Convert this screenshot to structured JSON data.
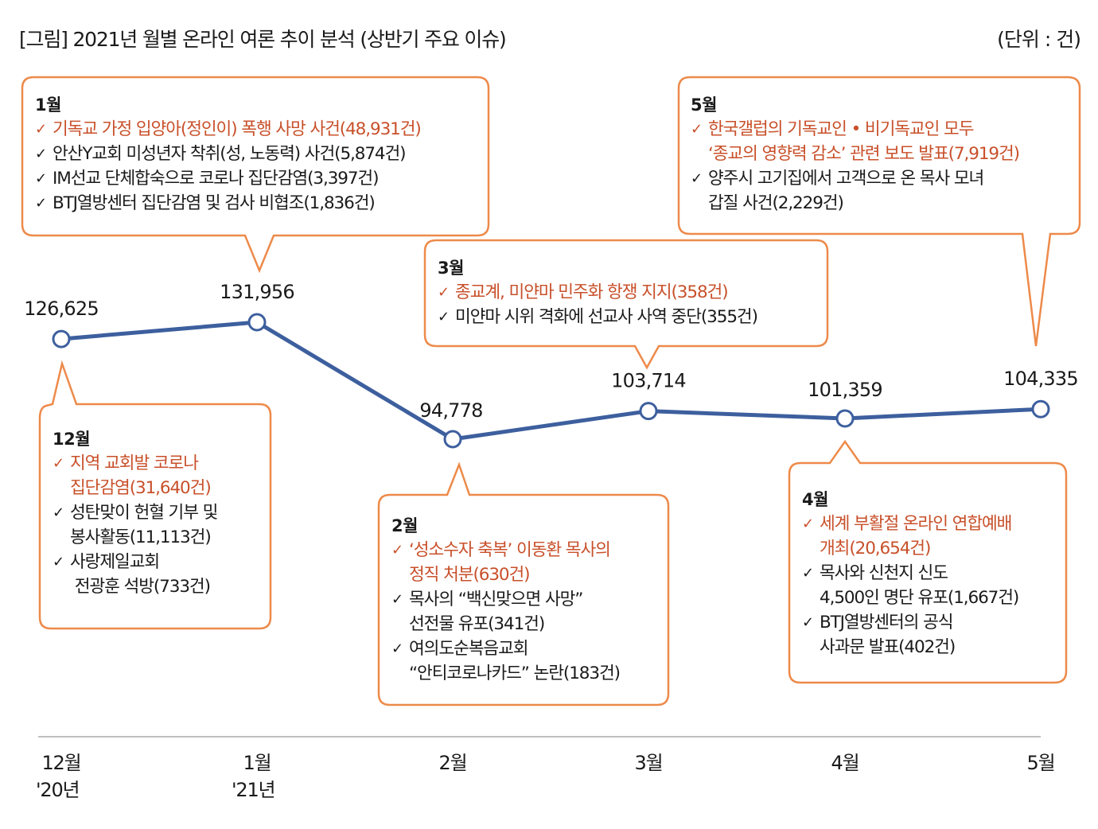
{
  "header": {
    "title": "[그림] 2021년 월별 온라인 여론 추이 분석 (상반기 주요 이슈)",
    "unit": "(단위 : 건)"
  },
  "colors": {
    "line": "#3d5f9e",
    "callout_border": "#ed8a4a",
    "highlight_text": "#c8502a",
    "axis": "#bfbfbf"
  },
  "chart_data": {
    "type": "line",
    "title": "[그림] 2021년 월별 온라인 여론 추이 분석 (상반기 주요 이슈)",
    "unit": "건",
    "xlabel": "",
    "ylabel": "",
    "grid": false,
    "categories": [
      "12월 '20년",
      "1월 '21년",
      "2월",
      "3월",
      "4월",
      "5월"
    ],
    "x_ticks": [
      {
        "month": "12월",
        "year": "'20년"
      },
      {
        "month": "1월",
        "year": "'21년"
      },
      {
        "month": "2월",
        "year": ""
      },
      {
        "month": "3월",
        "year": ""
      },
      {
        "month": "4월",
        "year": ""
      },
      {
        "month": "5월",
        "year": ""
      }
    ],
    "series": [
      {
        "name": "온라인 여론",
        "values": [
          126625,
          131956,
          94778,
          103714,
          101359,
          104335
        ]
      }
    ],
    "data_labels": [
      "126,625",
      "131,956",
      "94,778",
      "103,714",
      "101,359",
      "104,335"
    ]
  },
  "callouts": [
    {
      "month": "12월",
      "items": [
        {
          "highlight": true,
          "lines": [
            "지역 교회발 코로나",
            "집단감염(31,640건)"
          ]
        },
        {
          "highlight": false,
          "lines": [
            "성탄맞이 헌혈 기부 및",
            "봉사활동(11,113건)"
          ]
        },
        {
          "highlight": false,
          "lines": [
            "사랑제일교회",
            " 전광훈 석방(733건)"
          ]
        }
      ]
    },
    {
      "month": "1월",
      "items": [
        {
          "highlight": true,
          "lines": [
            "기독교 가정 입양아(정인이) 폭행 사망 사건(48,931건)"
          ]
        },
        {
          "highlight": false,
          "lines": [
            "안산Y교회 미성년자 착취(성, 노동력) 사건(5,874건)"
          ]
        },
        {
          "highlight": false,
          "lines": [
            "IM선교 단체합숙으로 코로나 집단감염(3,397건)"
          ]
        },
        {
          "highlight": false,
          "lines": [
            "BTJ열방센터 집단감염 및 검사 비협조(1,836건)"
          ]
        }
      ]
    },
    {
      "month": "2월",
      "items": [
        {
          "highlight": true,
          "lines": [
            "‘성소수자 축복’ 이동환 목사의",
            "정직 처분(630건)"
          ]
        },
        {
          "highlight": false,
          "lines": [
            "목사의 “백신맞으면 사망”",
            "선전물 유포(341건)"
          ]
        },
        {
          "highlight": false,
          "lines": [
            "여의도순복음교회",
            "“안티코로나카드” 논란(183건)"
          ]
        }
      ]
    },
    {
      "month": "3월",
      "items": [
        {
          "highlight": true,
          "lines": [
            "종교계, 미얀마 민주화 항쟁 지지(358건)"
          ]
        },
        {
          "highlight": false,
          "lines": [
            "미얀마 시위 격화에 선교사 사역 중단(355건)"
          ]
        }
      ]
    },
    {
      "month": "4월",
      "items": [
        {
          "highlight": true,
          "lines": [
            "세계 부활절 온라인 연합예배",
            "개최(20,654건)"
          ]
        },
        {
          "highlight": false,
          "lines": [
            "목사와 신천지 신도",
            "4,500인 명단 유포(1,667건)"
          ]
        },
        {
          "highlight": false,
          "lines": [
            "BTJ열방센터의 공식",
            "사과문 발표(402건)"
          ]
        }
      ]
    },
    {
      "month": "5월",
      "items": [
        {
          "highlight": true,
          "lines": [
            "한국갤럽의 기독교인 • 비기독교인 모두",
            "‘종교의 영향력 감소’ 관련 보도 발표(7,919건)"
          ]
        },
        {
          "highlight": false,
          "lines": [
            "양주시 고기집에서 고객으로 온 목사 모녀",
            "갑질 사건(2,229건)"
          ]
        }
      ]
    }
  ],
  "check_glyph": "✓"
}
